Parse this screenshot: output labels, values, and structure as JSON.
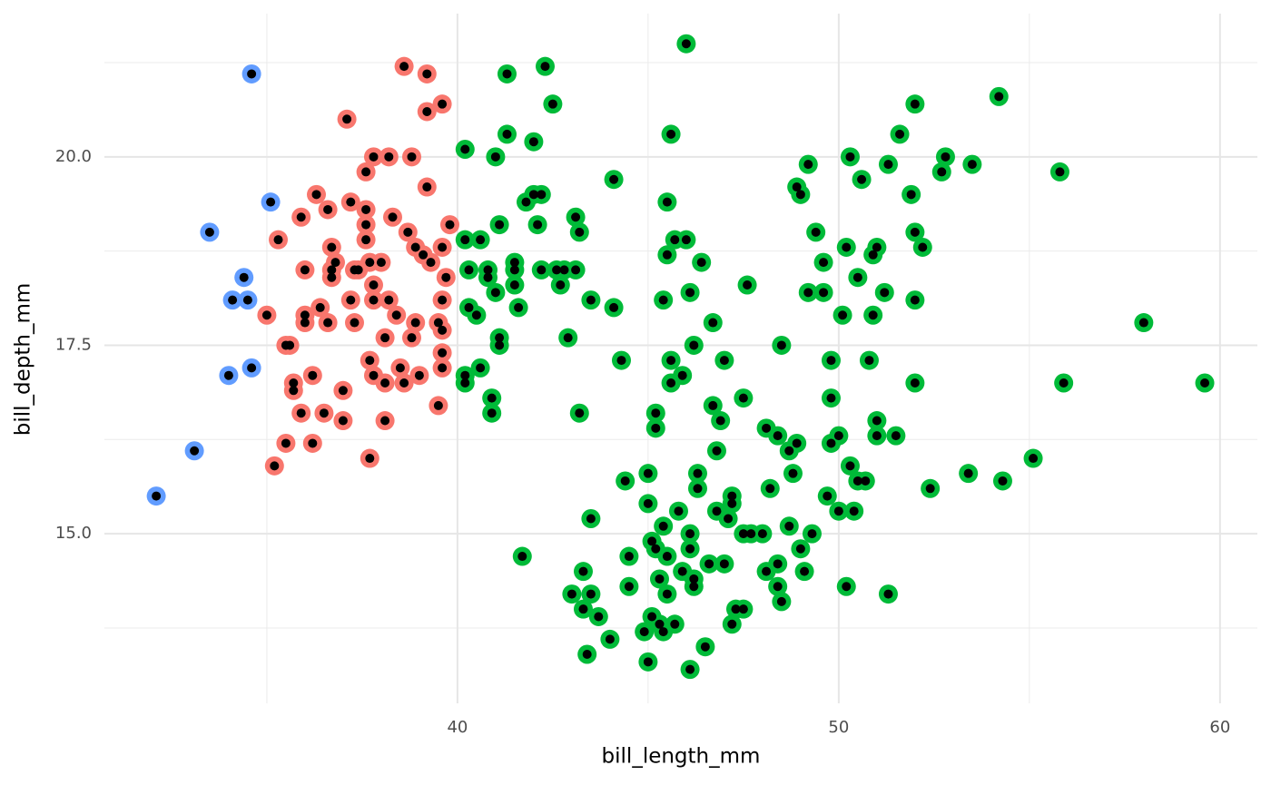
{
  "chart_data": {
    "type": "scatter",
    "x_label": "bill_length_mm",
    "y_label": "bill_depth_mm",
    "xlim": [
      30.74,
      60.98
    ],
    "ylim": [
      12.75,
      21.9
    ],
    "xticks": [
      40,
      50,
      60
    ],
    "yticks": [
      {
        "value": 15,
        "label": "15.0"
      },
      {
        "value": 17.5,
        "label": "17.5"
      },
      {
        "value": 20,
        "label": "20.0"
      }
    ],
    "minor_xticks": [
      35,
      45,
      55
    ],
    "minor_yticks": [
      13.75,
      16.25,
      18.75,
      21.25
    ],
    "grid": true,
    "overlay_color": "#000000",
    "series": [
      {
        "color": "#619CFF",
        "x": [
          32.1,
          33.1,
          33.5,
          34.0,
          34.1,
          34.4,
          34.5,
          34.6,
          34.6,
          35.1
        ],
        "values": [
          15.5,
          16.1,
          19.0,
          17.1,
          18.1,
          18.4,
          18.1,
          21.1,
          17.2,
          19.4
        ]
      },
      {
        "color": "#F8766D",
        "x": [
          35.0,
          35.2,
          35.3,
          35.5,
          35.5,
          35.6,
          35.7,
          35.7,
          35.9,
          35.9,
          36.0,
          36.0,
          36.0,
          36.2,
          36.2,
          36.3,
          36.4,
          36.5,
          36.6,
          36.6,
          36.7,
          36.7,
          36.7,
          36.8,
          37.0,
          37.0,
          37.1,
          37.2,
          37.2,
          37.3,
          37.3,
          37.4,
          37.6,
          37.6,
          37.6,
          37.6,
          37.7,
          37.7,
          37.7,
          37.8,
          37.8,
          37.8,
          37.8,
          38.0,
          38.1,
          38.1,
          38.1,
          38.2,
          38.2,
          38.3,
          38.4,
          38.5,
          38.6,
          38.6,
          38.8,
          38.7,
          38.8,
          38.9,
          38.9,
          39.0,
          39.1,
          39.2,
          39.2,
          39.2,
          39.3,
          39.5,
          39.5,
          39.6,
          39.6,
          39.6,
          39.6,
          39.6,
          39.7,
          39.8,
          39.6
        ],
        "values": [
          17.9,
          15.9,
          18.9,
          16.2,
          17.5,
          17.5,
          16.9,
          17.0,
          19.2,
          16.6,
          18.5,
          17.9,
          17.8,
          16.2,
          17.1,
          19.5,
          18.0,
          16.6,
          17.8,
          19.3,
          18.8,
          18.4,
          18.5,
          18.6,
          16.5,
          16.9,
          20.5,
          19.4,
          18.1,
          17.8,
          18.5,
          18.5,
          19.3,
          19.1,
          18.9,
          19.8,
          16.0,
          17.3,
          18.6,
          18.1,
          18.3,
          20.0,
          17.1,
          18.6,
          17.6,
          16.5,
          17.0,
          18.1,
          20.0,
          19.2,
          17.9,
          17.2,
          17.0,
          21.2,
          20.0,
          19.0,
          17.6,
          17.8,
          18.8,
          17.1,
          18.7,
          21.1,
          19.6,
          20.6,
          18.6,
          17.8,
          16.7,
          18.1,
          17.2,
          17.4,
          20.7,
          17.7,
          18.4,
          19.1,
          18.8
        ]
      },
      {
        "color": "#00BA38",
        "x": [
          40.2,
          40.2,
          40.2,
          40.2,
          40.3,
          40.3,
          40.5,
          40.6,
          40.6,
          40.8,
          40.8,
          40.9,
          40.9,
          41.0,
          41.0,
          41.1,
          41.1,
          41.1,
          41.3,
          41.3,
          41.5,
          41.5,
          41.5,
          41.6,
          41.7,
          41.8,
          42.0,
          42.0,
          42.1,
          42.2,
          42.2,
          42.3,
          42.5,
          42.6,
          42.7,
          42.8,
          42.9,
          43.0,
          43.1,
          43.2,
          43.2,
          43.1,
          43.5,
          43.5,
          43.3,
          43.4,
          43.3,
          43.5,
          43.7,
          44.0,
          44.1,
          44.1,
          44.3,
          44.4,
          44.5,
          44.5,
          44.9,
          45.0,
          45.0,
          45.0,
          45.2,
          45.2,
          45.2,
          45.3,
          45.3,
          45.4,
          45.5,
          45.4,
          45.5,
          45.6,
          45.6,
          45.6,
          45.7,
          45.9,
          46.0,
          46.0,
          46.1,
          46.1,
          46.1,
          46.1,
          46.2,
          46.2,
          46.3,
          46.3,
          46.4,
          46.5,
          46.7,
          46.7,
          46.8,
          46.9,
          47.0,
          47.0,
          47.1,
          47.2,
          47.2,
          47.3,
          47.5,
          47.6,
          47.5,
          47.7,
          48.0,
          48.1,
          48.2,
          48.4,
          48.4,
          48.5,
          48.5,
          48.7,
          48.7,
          48.8,
          48.9,
          48.9,
          49.0,
          49.0,
          49.1,
          49.2,
          49.2,
          49.3,
          49.4,
          49.6,
          49.6,
          49.7,
          49.8,
          49.8,
          49.8,
          50.0,
          50.0,
          50.1,
          50.2,
          50.2,
          50.3,
          50.3,
          50.4,
          50.5,
          50.5,
          50.6,
          50.7,
          50.8,
          50.9,
          50.9,
          51.0,
          51.0,
          51.0,
          51.2,
          51.3,
          51.3,
          51.5,
          51.6,
          51.9,
          52.0,
          52.0,
          52.0,
          52.2,
          52.4,
          52.7,
          52.8,
          53.4,
          53.5,
          54.2,
          54.3,
          55.1,
          55.8,
          55.9,
          58.0,
          59.6,
          52.0,
          45.5,
          46.6,
          47.5,
          48.1,
          48.4,
          45.4,
          45.8,
          46.8,
          47.2,
          45.1,
          45.5,
          45.9,
          46.2,
          45.1,
          45.7
        ],
        "values": [
          20.1,
          17.1,
          17.0,
          18.9,
          18.5,
          18.0,
          17.9,
          18.9,
          17.2,
          18.5,
          18.4,
          16.8,
          16.6,
          20.0,
          18.2,
          17.6,
          19.1,
          17.5,
          21.1,
          20.3,
          18.6,
          18.3,
          18.5,
          18.0,
          14.7,
          19.4,
          20.2,
          19.5,
          19.1,
          18.5,
          19.5,
          21.2,
          20.7,
          18.5,
          18.3,
          18.5,
          17.6,
          14.2,
          19.2,
          19.0,
          16.6,
          18.5,
          18.1,
          15.2,
          14.5,
          13.4,
          14.0,
          14.2,
          13.9,
          13.6,
          19.7,
          18.0,
          17.3,
          15.7,
          14.7,
          14.3,
          13.7,
          13.3,
          15.4,
          15.8,
          16.6,
          16.4,
          14.8,
          14.4,
          13.8,
          13.7,
          18.7,
          18.1,
          19.4,
          20.3,
          17.3,
          17.0,
          18.9,
          17.1,
          21.5,
          18.9,
          18.2,
          15.0,
          13.2,
          14.8,
          17.5,
          14.4,
          15.8,
          15.6,
          18.6,
          13.5,
          16.7,
          17.8,
          16.1,
          16.5,
          17.3,
          14.6,
          15.2,
          15.4,
          13.8,
          14.0,
          16.8,
          18.3,
          15.0,
          15.0,
          15.0,
          16.4,
          15.6,
          16.3,
          14.3,
          17.5,
          14.1,
          16.1,
          15.1,
          15.8,
          16.2,
          19.6,
          19.5,
          14.8,
          14.5,
          19.9,
          18.2,
          15.0,
          19.0,
          18.2,
          18.6,
          15.5,
          17.3,
          16.8,
          16.2,
          16.3,
          15.3,
          17.9,
          14.3,
          18.8,
          20.0,
          15.9,
          15.3,
          18.4,
          15.7,
          19.7,
          15.7,
          17.3,
          18.7,
          17.9,
          18.8,
          16.5,
          16.3,
          18.2,
          19.9,
          14.2,
          16.3,
          20.3,
          19.5,
          19.0,
          18.1,
          17.0,
          18.8,
          15.6,
          19.8,
          20.0,
          15.8,
          19.9,
          20.8,
          15.7,
          16.0,
          19.8,
          17.0,
          17.8,
          17.0,
          20.7,
          14.2,
          14.6,
          14.0,
          14.5,
          14.6,
          15.1,
          15.3,
          15.3,
          15.5,
          14.9,
          14.7,
          14.5,
          14.3,
          13.9,
          13.8
        ]
      }
    ]
  }
}
